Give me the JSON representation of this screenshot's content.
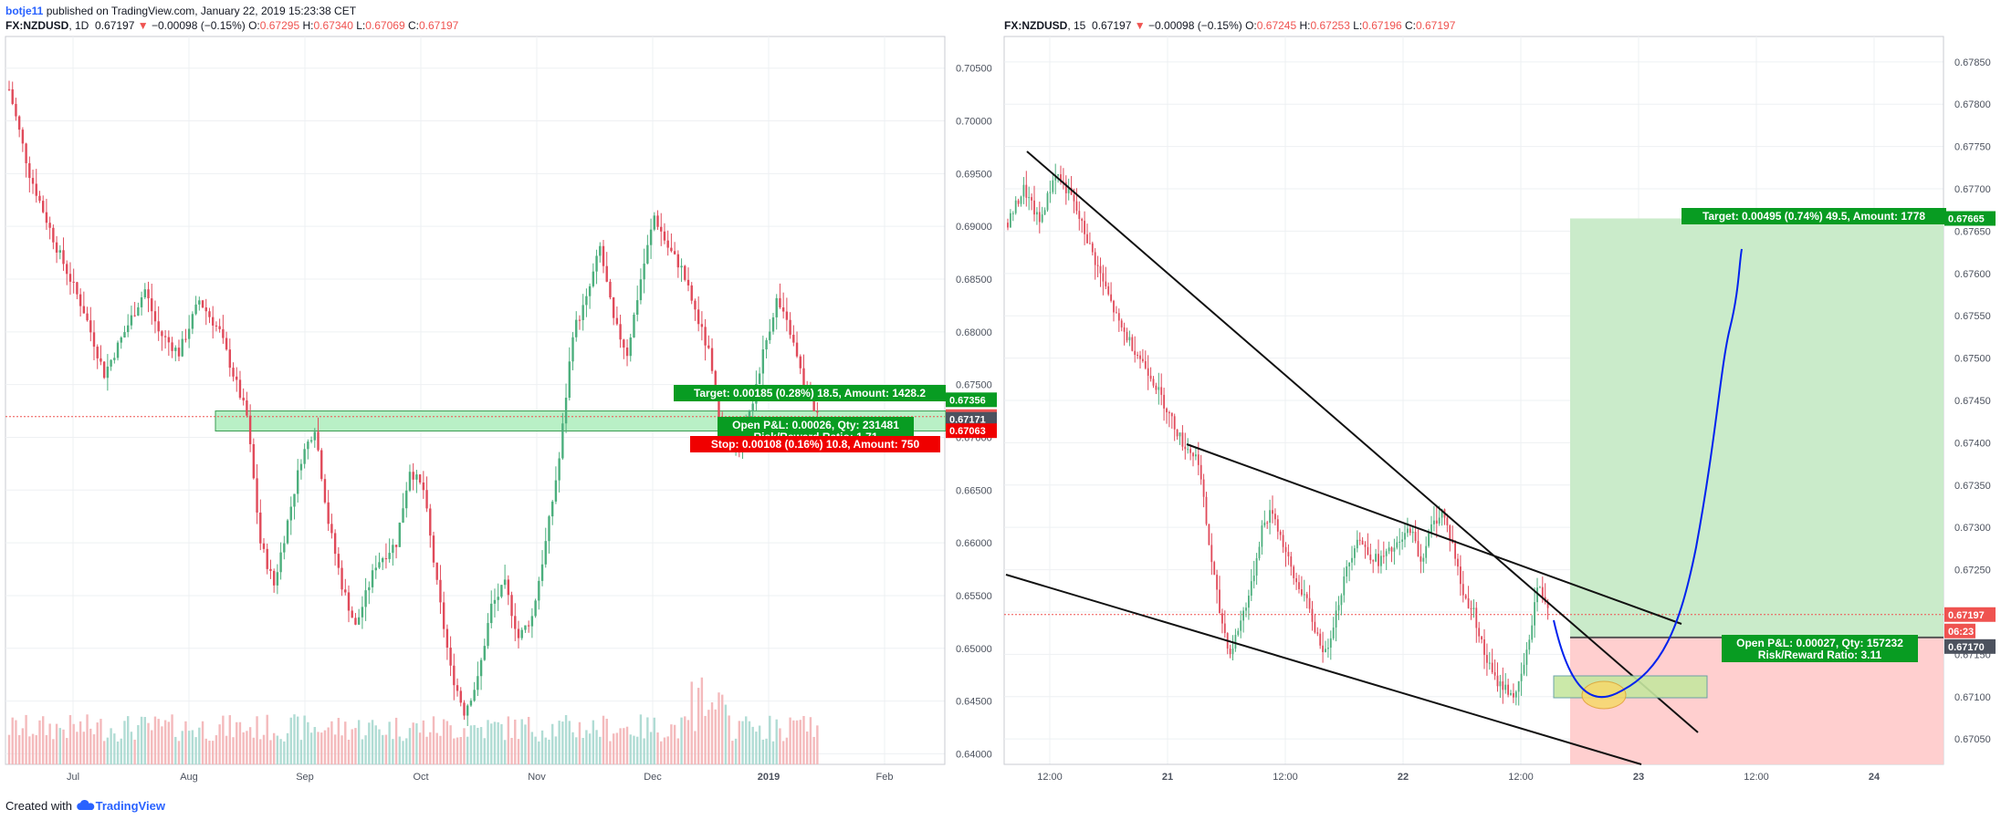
{
  "header": {
    "user": "botje11",
    "published": " published on TradingView.com, January 22, 2019 15:23:38 CET"
  },
  "left_chart": {
    "symbol": "FX:NZDUSD",
    "interval": "1D",
    "last": "0.67197",
    "arrow": "▼",
    "change": "−0.00098 (−0.15%)",
    "o_label": "O:",
    "o": "0.67295",
    "h_label": "H:",
    "h": "0.67340",
    "l_label": "L:",
    "l": "0.67069",
    "c_label": "C:",
    "c": "0.67197"
  },
  "right_chart": {
    "symbol": "FX:NZDUSD",
    "interval": "15",
    "last": "0.67197",
    "arrow": "▼",
    "change": "−0.00098 (−0.15%)",
    "o_label": "O:",
    "o": "0.67245",
    "h_label": "H:",
    "h": "0.67253",
    "l_label": "L:",
    "l": "0.67196",
    "c_label": "C:",
    "c": "0.67197"
  },
  "footer": {
    "created": "Created with",
    "brand": "TradingView"
  },
  "colors": {
    "up": "#26a69a",
    "down": "#ef5350",
    "up_bar": "#4caf7d",
    "down_bar": "#e04a5a",
    "zone": "#b9f0c6",
    "target": "#089c22",
    "stop": "#f00000",
    "price": "#ef5350",
    "tag_dark": "#4c525e",
    "line_blue": "#0022ee"
  },
  "chart_data": [
    {
      "type": "candlestick",
      "symbol": "FX:NZDUSD",
      "interval": "1D",
      "x_ticks": [
        "Jul",
        "Aug",
        "Sep",
        "Oct",
        "Nov",
        "Dec",
        "2019",
        "Feb"
      ],
      "y_ticks": [
        "0.70500",
        "0.70000",
        "0.69500",
        "0.69000",
        "0.68500",
        "0.68000",
        "0.67500",
        "0.67000",
        "0.66500",
        "0.66000",
        "0.65500",
        "0.65000",
        "0.64500",
        "0.64000"
      ],
      "ylim": [
        0.639,
        0.708
      ],
      "close_path": [
        [
          0,
          0.703
        ],
        [
          6,
          0.695
        ],
        [
          14,
          0.688
        ],
        [
          22,
          0.682
        ],
        [
          28,
          0.676
        ],
        [
          34,
          0.68
        ],
        [
          40,
          0.684
        ],
        [
          44,
          0.68
        ],
        [
          50,
          0.678
        ],
        [
          56,
          0.683
        ],
        [
          62,
          0.68
        ],
        [
          66,
          0.676
        ],
        [
          70,
          0.672
        ],
        [
          74,
          0.66
        ],
        [
          78,
          0.656
        ],
        [
          82,
          0.662
        ],
        [
          86,
          0.668
        ],
        [
          90,
          0.671
        ],
        [
          94,
          0.662
        ],
        [
          98,
          0.656
        ],
        [
          102,
          0.652
        ],
        [
          108,
          0.658
        ],
        [
          114,
          0.66
        ],
        [
          118,
          0.667
        ],
        [
          122,
          0.665
        ],
        [
          126,
          0.656
        ],
        [
          130,
          0.648
        ],
        [
          134,
          0.644
        ],
        [
          138,
          0.647
        ],
        [
          142,
          0.654
        ],
        [
          146,
          0.656
        ],
        [
          150,
          0.651
        ],
        [
          154,
          0.653
        ],
        [
          158,
          0.66
        ],
        [
          162,
          0.668
        ],
        [
          166,
          0.68
        ],
        [
          170,
          0.683
        ],
        [
          174,
          0.688
        ],
        [
          178,
          0.681
        ],
        [
          182,
          0.678
        ],
        [
          186,
          0.685
        ],
        [
          190,
          0.691
        ],
        [
          194,
          0.688
        ],
        [
          198,
          0.686
        ],
        [
          202,
          0.682
        ],
        [
          206,
          0.678
        ],
        [
          210,
          0.67
        ],
        [
          214,
          0.669
        ],
        [
          218,
          0.672
        ],
        [
          222,
          0.678
        ],
        [
          226,
          0.683
        ],
        [
          230,
          0.68
        ],
        [
          234,
          0.675
        ],
        [
          238,
          0.672
        ]
      ],
      "zone": {
        "from": 0.6706,
        "to": 0.6725
      },
      "price_line": 0.67197,
      "target_line": 0.67356,
      "stop_line": 0.67063,
      "price_tags": [
        "0.67356",
        "0.67197",
        "0.67171",
        "0.67063"
      ],
      "labels": {
        "target": "Target: 0.00185 (0.28%) 18.5, Amount: 1428.2",
        "open_pl": "Open P&L: 0.00026, Qty: 231481",
        "risk_reward": "Risk/Reward Ratio: 1.71",
        "stop": "Stop: 0.00108 (0.16%) 10.8, Amount: 750"
      }
    },
    {
      "type": "candlestick",
      "symbol": "FX:NZDUSD",
      "interval": "15",
      "x_ticks": [
        "12:00",
        "21",
        "12:00",
        "22",
        "12:00",
        "23",
        "12:00",
        "24"
      ],
      "y_ticks": [
        "0.67850",
        "0.67800",
        "0.67750",
        "0.67700",
        "0.67650",
        "0.67600",
        "0.67550",
        "0.67500",
        "0.67450",
        "0.67400",
        "0.67350",
        "0.67300",
        "0.67250",
        "0.67200",
        "0.67150",
        "0.67100",
        "0.67050"
      ],
      "ylim": [
        0.6702,
        0.6788
      ],
      "close_path": [
        [
          0,
          0.6766
        ],
        [
          6,
          0.677
        ],
        [
          12,
          0.6766
        ],
        [
          18,
          0.6772
        ],
        [
          24,
          0.6769
        ],
        [
          30,
          0.6764
        ],
        [
          36,
          0.6759
        ],
        [
          42,
          0.6754
        ],
        [
          48,
          0.6751
        ],
        [
          54,
          0.6748
        ],
        [
          60,
          0.6744
        ],
        [
          66,
          0.674
        ],
        [
          72,
          0.6738
        ],
        [
          76,
          0.6728
        ],
        [
          80,
          0.672
        ],
        [
          84,
          0.6715
        ],
        [
          88,
          0.6719
        ],
        [
          92,
          0.6723
        ],
        [
          96,
          0.673
        ],
        [
          100,
          0.6732
        ],
        [
          104,
          0.6728
        ],
        [
          108,
          0.6724
        ],
        [
          112,
          0.6722
        ],
        [
          116,
          0.6718
        ],
        [
          120,
          0.6715
        ],
        [
          124,
          0.672
        ],
        [
          128,
          0.6725
        ],
        [
          132,
          0.6729
        ],
        [
          136,
          0.6727
        ],
        [
          140,
          0.6726
        ],
        [
          144,
          0.6727
        ],
        [
          148,
          0.6728
        ],
        [
          152,
          0.673
        ],
        [
          156,
          0.6726
        ],
        [
          160,
          0.673
        ],
        [
          164,
          0.6732
        ],
        [
          168,
          0.6728
        ],
        [
          172,
          0.6722
        ],
        [
          176,
          0.672
        ],
        [
          180,
          0.6715
        ],
        [
          184,
          0.6712
        ],
        [
          188,
          0.6711
        ],
        [
          192,
          0.671
        ],
        [
          196,
          0.6715
        ],
        [
          200,
          0.6723
        ],
        [
          204,
          0.6721
        ]
      ],
      "price_line": 0.67197,
      "entry_line": 0.6717,
      "target_line": 0.67665,
      "price_tags": [
        "0.67665",
        "0.67197",
        "06:23",
        "0.67170"
      ],
      "labels": {
        "target": "Target: 0.00495 (0.74%) 49.5, Amount: 1778",
        "open_pl": "Open P&L: 0.00027, Qty: 157232",
        "risk_reward": "Risk/Reward Ratio: 3.11"
      }
    }
  ]
}
